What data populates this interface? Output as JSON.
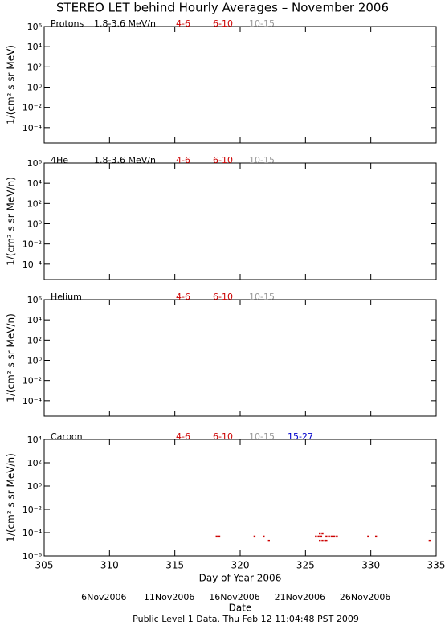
{
  "title": "STEREO LET behind Hourly Averages – November 2006",
  "chart_data": [
    {
      "type": "scatter",
      "panel_label": "Protons",
      "energy_range": "1.8-3.6 MeV/n",
      "ylabel": "1/(cm² s sr MeV)",
      "log_y": true,
      "xlim": [
        305,
        335
      ],
      "xticks": [
        305,
        310,
        315,
        320,
        325,
        330,
        335
      ],
      "ylim": [
        3e-06,
        1000000
      ],
      "yticks": [
        {
          "value": 1000000,
          "label": "10⁶"
        },
        {
          "value": 10000,
          "label": "10⁴"
        },
        {
          "value": 100,
          "label": "10²"
        },
        {
          "value": 1,
          "label": "10⁰"
        },
        {
          "value": 0.01,
          "label": "10⁻²"
        },
        {
          "value": 0.0001,
          "label": "10⁻⁴"
        }
      ],
      "series": [
        {
          "name": "4-6",
          "color": "#cc0000",
          "x": [],
          "values": []
        },
        {
          "name": "6-10",
          "color": "#cc0000",
          "x": [],
          "values": []
        },
        {
          "name": "10-15",
          "color": "#999999",
          "x": [],
          "values": []
        }
      ]
    },
    {
      "type": "scatter",
      "panel_label": "4He",
      "energy_range": "1.8-3.6 MeV/n",
      "ylabel": "1/(cm² s sr MeV/n)",
      "log_y": true,
      "xlim": [
        305,
        335
      ],
      "xticks": [
        305,
        310,
        315,
        320,
        325,
        330,
        335
      ],
      "ylim": [
        3e-06,
        1000000
      ],
      "yticks": [
        {
          "value": 1000000,
          "label": "10⁶"
        },
        {
          "value": 10000,
          "label": "10⁴"
        },
        {
          "value": 100,
          "label": "10²"
        },
        {
          "value": 1,
          "label": "10⁰"
        },
        {
          "value": 0.01,
          "label": "10⁻²"
        },
        {
          "value": 0.0001,
          "label": "10⁻⁴"
        }
      ],
      "series": [
        {
          "name": "4-6",
          "color": "#cc0000",
          "x": [],
          "values": []
        },
        {
          "name": "6-10",
          "color": "#cc0000",
          "x": [],
          "values": []
        },
        {
          "name": "10-15",
          "color": "#999999",
          "x": [],
          "values": []
        }
      ]
    },
    {
      "type": "scatter",
      "panel_label": "Helium",
      "ylabel": "1/(cm² s sr MeV/n)",
      "log_y": true,
      "xlim": [
        305,
        335
      ],
      "xticks": [
        305,
        310,
        315,
        320,
        325,
        330,
        335
      ],
      "ylim": [
        3e-06,
        1000000
      ],
      "yticks": [
        {
          "value": 1000000,
          "label": "10⁶"
        },
        {
          "value": 10000,
          "label": "10⁴"
        },
        {
          "value": 100,
          "label": "10²"
        },
        {
          "value": 1,
          "label": "10⁰"
        },
        {
          "value": 0.01,
          "label": "10⁻²"
        },
        {
          "value": 0.0001,
          "label": "10⁻⁴"
        }
      ],
      "series": [
        {
          "name": "4-6",
          "color": "#cc0000",
          "x": [],
          "values": []
        },
        {
          "name": "6-10",
          "color": "#cc0000",
          "x": [],
          "values": []
        },
        {
          "name": "10-15",
          "color": "#999999",
          "x": [],
          "values": []
        }
      ]
    },
    {
      "type": "scatter",
      "panel_label": "Carbon",
      "ylabel": "1/(cm² s sr MeV/n)",
      "log_y": true,
      "xlabel": "Day of Year 2006",
      "xlim": [
        305,
        335
      ],
      "xticks": [
        305,
        310,
        315,
        320,
        325,
        330,
        335
      ],
      "x2label": "Date",
      "x2ticks": [
        {
          "value": 310,
          "label": "6Nov2006"
        },
        {
          "value": 315,
          "label": "11Nov2006"
        },
        {
          "value": 320,
          "label": "16Nov2006"
        },
        {
          "value": 325,
          "label": "21Nov2006"
        },
        {
          "value": 330,
          "label": "26Nov2006"
        }
      ],
      "ylim": [
        1e-06,
        10000
      ],
      "yticks": [
        {
          "value": 10000,
          "label": "10⁴"
        },
        {
          "value": 100,
          "label": "10²"
        },
        {
          "value": 1,
          "label": "10⁰"
        },
        {
          "value": 0.01,
          "label": "10⁻²"
        },
        {
          "value": 0.0001,
          "label": "10⁻⁴"
        },
        {
          "value": 1e-06,
          "label": "10⁻⁶"
        }
      ],
      "series": [
        {
          "name": "4-6",
          "color": "#cc0000",
          "x": [
            318.2,
            318.4,
            321.1,
            321.8,
            322.2,
            325.8,
            326.0,
            326.1,
            326.1,
            326.2,
            326.3,
            326.3,
            326.5,
            326.6,
            326.6,
            326.8,
            327.0,
            327.2,
            327.4,
            329.8,
            330.4,
            334.5
          ],
          "values": [
            4.6e-05,
            4.6e-05,
            4.6e-05,
            4.6e-05,
            2e-05,
            4.6e-05,
            4.6e-05,
            2e-05,
            8.5e-05,
            4.6e-05,
            2e-05,
            8.5e-05,
            2e-05,
            4.6e-05,
            2e-05,
            4.6e-05,
            4.6e-05,
            4.6e-05,
            4.6e-05,
            4.6e-05,
            4.6e-05,
            2e-05
          ]
        },
        {
          "name": "6-10",
          "color": "#cc0000",
          "x": [],
          "values": []
        },
        {
          "name": "10-15",
          "color": "#999999",
          "x": [],
          "values": []
        },
        {
          "name": "15-27",
          "color": "#0000cc",
          "x": [],
          "values": []
        }
      ]
    }
  ],
  "footer": "Public Level 1 Data. Thu Feb 12 11:04:48 PST 2009"
}
